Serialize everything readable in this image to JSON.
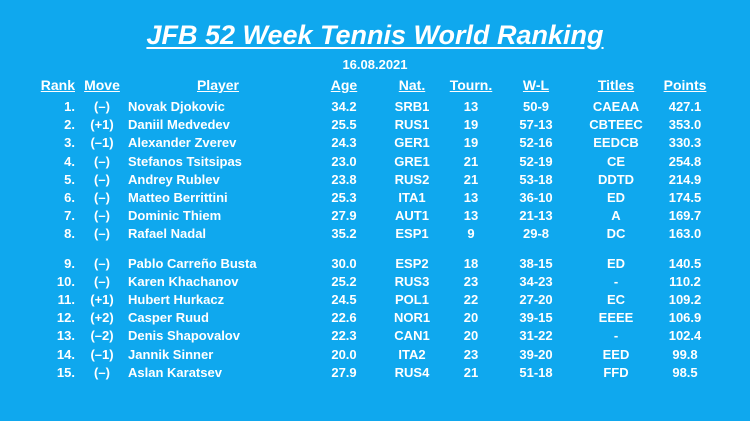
{
  "title": "JFB 52 Week Tennis World Ranking",
  "date": "16.08.2021",
  "columns": {
    "rank": "Rank",
    "move": "Move",
    "player": "Player",
    "age": "Age",
    "nat": "Nat.",
    "tourn": "Tourn.",
    "wl": "W-L",
    "titles": "Titles",
    "points": "Points"
  },
  "rows": [
    {
      "rank": "1.",
      "move": "(–)",
      "player": "Novak Djokovic",
      "age": "34.2",
      "nat": "SRB1",
      "tourn": "13",
      "wl": "50-9",
      "titles": "CAEAA",
      "points": "427.1"
    },
    {
      "rank": "2.",
      "move": "(+1)",
      "player": "Daniil Medvedev",
      "age": "25.5",
      "nat": "RUS1",
      "tourn": "19",
      "wl": "57-13",
      "titles": "CBTEEC",
      "points": "353.0"
    },
    {
      "rank": "3.",
      "move": "(–1)",
      "player": "Alexander Zverev",
      "age": "24.3",
      "nat": "GER1",
      "tourn": "19",
      "wl": "52-16",
      "titles": "EEDCB",
      "points": "330.3"
    },
    {
      "rank": "4.",
      "move": "(–)",
      "player": "Stefanos Tsitsipas",
      "age": "23.0",
      "nat": "GRE1",
      "tourn": "21",
      "wl": "52-19",
      "titles": "CE",
      "points": "254.8"
    },
    {
      "rank": "5.",
      "move": "(–)",
      "player": "Andrey Rublev",
      "age": "23.8",
      "nat": "RUS2",
      "tourn": "21",
      "wl": "53-18",
      "titles": "DDTD",
      "points": "214.9"
    },
    {
      "rank": "6.",
      "move": "(–)",
      "player": "Matteo Berrittini",
      "age": "25.3",
      "nat": "ITA1",
      "tourn": "13",
      "wl": "36-10",
      "titles": "ED",
      "points": "174.5"
    },
    {
      "rank": "7.",
      "move": "(–)",
      "player": "Dominic Thiem",
      "age": "27.9",
      "nat": "AUT1",
      "tourn": "13",
      "wl": "21-13",
      "titles": "A",
      "points": "169.7"
    },
    {
      "rank": "8.",
      "move": "(–)",
      "player": "Rafael Nadal",
      "age": "35.2",
      "nat": "ESP1",
      "tourn": "9",
      "wl": "29-8",
      "titles": "DC",
      "points": "163.0"
    },
    {
      "rank": "9.",
      "move": "(–)",
      "player": "Pablo Carreño Busta",
      "age": "30.0",
      "nat": "ESP2",
      "tourn": "18",
      "wl": "38-15",
      "titles": "ED",
      "points": "140.5"
    },
    {
      "rank": "10.",
      "move": "(–)",
      "player": "Karen Khachanov",
      "age": "25.2",
      "nat": "RUS3",
      "tourn": "23",
      "wl": "34-23",
      "titles": "-",
      "points": "110.2"
    },
    {
      "rank": "11.",
      "move": "(+1)",
      "player": "Hubert Hurkacz",
      "age": "24.5",
      "nat": "POL1",
      "tourn": "22",
      "wl": "27-20",
      "titles": "EC",
      "points": "109.2"
    },
    {
      "rank": "12.",
      "move": "(+2)",
      "player": "Casper Ruud",
      "age": "22.6",
      "nat": "NOR1",
      "tourn": "20",
      "wl": "39-15",
      "titles": "EEEE",
      "points": "106.9"
    },
    {
      "rank": "13.",
      "move": "(–2)",
      "player": "Denis Shapovalov",
      "age": "22.3",
      "nat": "CAN1",
      "tourn": "20",
      "wl": "31-22",
      "titles": "-",
      "points": "102.4"
    },
    {
      "rank": "14.",
      "move": "(–1)",
      "player": "Jannik Sinner",
      "age": "20.0",
      "nat": "ITA2",
      "tourn": "23",
      "wl": "39-20",
      "titles": "EED",
      "points": "99.8"
    },
    {
      "rank": "15.",
      "move": "(–)",
      "player": "Aslan Karatsev",
      "age": "27.9",
      "nat": "RUS4",
      "tourn": "21",
      "wl": "51-18",
      "titles": "FFD",
      "points": "98.5"
    }
  ]
}
